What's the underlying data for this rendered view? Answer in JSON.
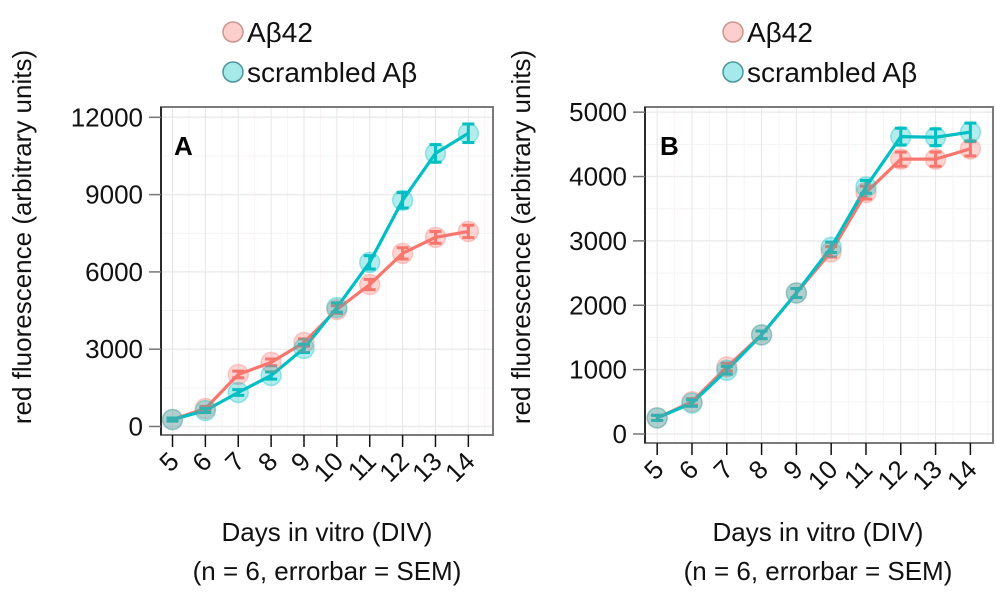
{
  "chart_data": [
    {
      "type": "line",
      "panel_label": "A",
      "title": "",
      "xlabel": "Days in vitro (DIV)",
      "xlabel_note": "(n = 6, errorbar = SEM)",
      "ylabel": "red fluorescence (arbitrary units)",
      "x": [
        5,
        6,
        7,
        8,
        9,
        10,
        11,
        12,
        13,
        14
      ],
      "x_tick_labels": [
        "5",
        "6",
        "7",
        "8",
        "9",
        "10",
        "11",
        "12",
        "13",
        "14"
      ],
      "y_ticks": [
        0,
        3000,
        6000,
        9000,
        12000
      ],
      "y_tick_labels": [
        "0",
        "3000",
        "6000",
        "9000",
        "12000"
      ],
      "xlim": [
        4.65,
        14.75
      ],
      "ylim": [
        -330,
        12400
      ],
      "grid": true,
      "legend_position": "top",
      "series": [
        {
          "name": "Aβ42",
          "color": "#F8766D",
          "values": [
            270,
            700,
            2020,
            2490,
            3260,
            4540,
            5510,
            6720,
            7340,
            7570
          ],
          "sem": [
            60,
            80,
            130,
            130,
            140,
            150,
            200,
            220,
            230,
            240
          ]
        },
        {
          "name": "scrambled Aβ",
          "color": "#00BFC4",
          "values": [
            270,
            620,
            1320,
            1980,
            3030,
            4620,
            6370,
            8780,
            10600,
            11380
          ],
          "sem": [
            60,
            80,
            110,
            140,
            160,
            180,
            260,
            300,
            340,
            360
          ]
        }
      ]
    },
    {
      "type": "line",
      "panel_label": "B",
      "title": "",
      "xlabel": "Days in vitro (DIV)",
      "xlabel_note": "(n = 6, errorbar = SEM)",
      "ylabel": "red fluorescence (arbitrary units)",
      "x": [
        5,
        6,
        7,
        8,
        9,
        10,
        11,
        12,
        13,
        14
      ],
      "x_tick_labels": [
        "5",
        "6",
        "7",
        "8",
        "9",
        "10",
        "11",
        "12",
        "13",
        "14"
      ],
      "y_ticks": [
        0,
        1000,
        2000,
        3000,
        4000,
        5000
      ],
      "y_tick_labels": [
        "0",
        "1000",
        "2000",
        "3000",
        "4000",
        "5000"
      ],
      "xlim": [
        4.65,
        14.65
      ],
      "ylim": [
        -140,
        5080
      ],
      "grid": true,
      "legend_position": "top",
      "series": [
        {
          "name": "Aβ42",
          "color": "#F8766D",
          "values": [
            250,
            500,
            1040,
            1540,
            2190,
            2830,
            3750,
            4270,
            4270,
            4430
          ],
          "sem": [
            40,
            50,
            60,
            60,
            70,
            80,
            100,
            110,
            110,
            110
          ]
        },
        {
          "name": "scrambled Aβ",
          "color": "#00BFC4",
          "values": [
            250,
            480,
            990,
            1540,
            2190,
            2900,
            3840,
            4620,
            4610,
            4690
          ],
          "sem": [
            40,
            50,
            60,
            60,
            70,
            80,
            100,
            130,
            130,
            140
          ]
        }
      ]
    }
  ]
}
